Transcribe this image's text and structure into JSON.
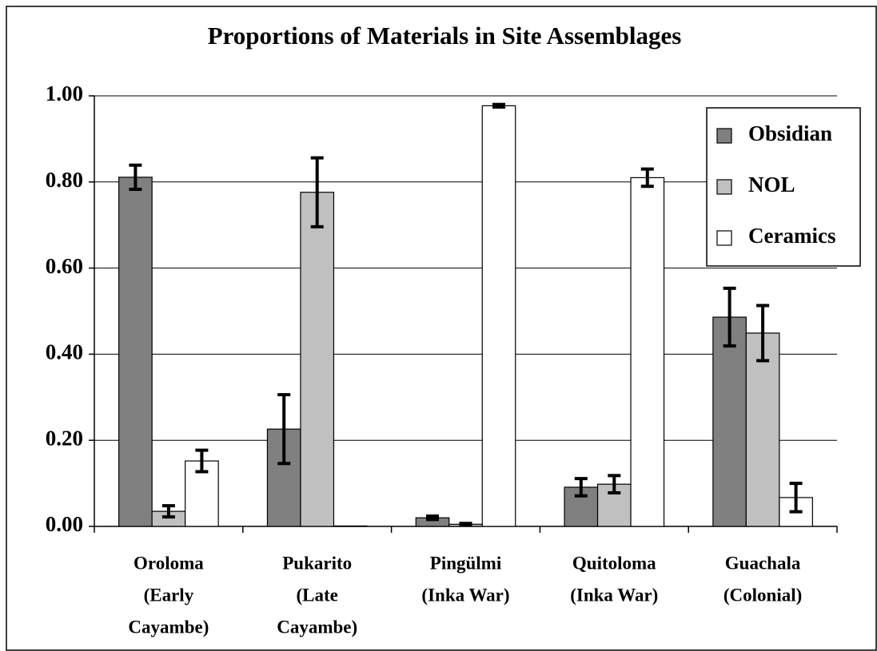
{
  "chart_data": {
    "type": "bar",
    "title": "Proportions of Materials in Site Assemblages",
    "categories": [
      [
        "Oroloma",
        "(Early",
        "Cayambe)"
      ],
      [
        "Pukarito",
        "(Late",
        "Cayambe)"
      ],
      [
        "Pingülmi",
        "(Inka War)"
      ],
      [
        "Quitoloma",
        "(Inka War)"
      ],
      [
        "Guachala",
        "(Colonial)"
      ]
    ],
    "series": [
      {
        "name": "Obsidian",
        "color": "#808080",
        "values": [
          0.811,
          0.226,
          0.02,
          0.091,
          0.486
        ],
        "errors": [
          0.028,
          0.08,
          0.004,
          0.02,
          0.067
        ]
      },
      {
        "name": "NOL",
        "color": "#c0c0c0",
        "values": [
          0.035,
          0.776,
          0.005,
          0.098,
          0.449
        ],
        "errors": [
          0.013,
          0.08,
          0.002,
          0.02,
          0.064
        ]
      },
      {
        "name": "Ceramics",
        "color": "#ffffff",
        "values": [
          0.152,
          0.001,
          0.977,
          0.81,
          0.067
        ],
        "errors": [
          0.025,
          0,
          0.003,
          0.02,
          0.033
        ]
      }
    ],
    "ylim": [
      0,
      1
    ],
    "yticks": [
      {
        "value": 0,
        "label": "0.00"
      },
      {
        "value": 0.2,
        "label": "0.20"
      },
      {
        "value": 0.4,
        "label": "0.40"
      },
      {
        "value": 0.6,
        "label": "0.60"
      },
      {
        "value": 0.8,
        "label": "0.80"
      },
      {
        "value": 1,
        "label": "1.00"
      }
    ],
    "grid": true,
    "legend": "upper right"
  }
}
